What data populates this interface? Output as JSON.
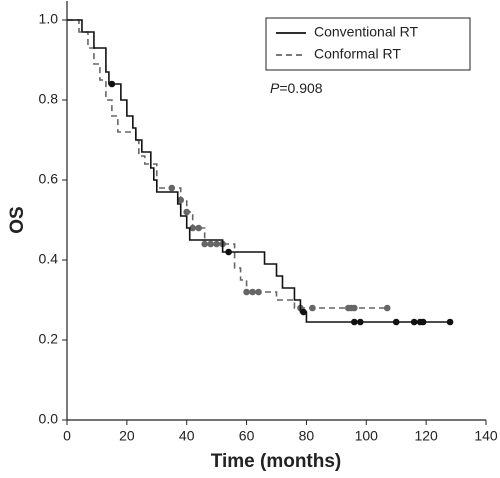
{
  "chart_data": {
    "type": "line",
    "step": "post",
    "x_label": "Time (months)",
    "y_label": "OS",
    "annotation": [
      "P",
      "=0.908"
    ],
    "xlim": [
      0,
      140
    ],
    "xticks": [
      0,
      20,
      40,
      60,
      80,
      100,
      120,
      140
    ],
    "ylim": [
      0,
      1.05
    ],
    "yticks": [
      {
        "value": 0,
        "label": "0.0"
      },
      {
        "value": 0.2,
        "label": "0.2"
      },
      {
        "value": 0.4,
        "label": "0.4"
      },
      {
        "value": 0.6,
        "label": "0.6"
      },
      {
        "value": 0.8,
        "label": "0.8"
      },
      {
        "value": 1.0,
        "label": "1.0"
      }
    ],
    "series": [
      {
        "name": "Conventional RT",
        "color": "#111111",
        "dash": false,
        "x": [
          0,
          5,
          9,
          13,
          14,
          18,
          20,
          22,
          23,
          25,
          28,
          29,
          30,
          37,
          38,
          40,
          41,
          42,
          52,
          66,
          70,
          72,
          76,
          78,
          80,
          128
        ],
        "values": [
          1.0,
          0.97,
          0.93,
          0.87,
          0.84,
          0.8,
          0.76,
          0.73,
          0.7,
          0.67,
          0.63,
          0.6,
          0.57,
          0.54,
          0.51,
          0.48,
          0.45,
          0.45,
          0.42,
          0.39,
          0.36,
          0.33,
          0.3,
          0.27,
          0.245,
          0.245
        ],
        "censor_x": [
          15,
          54,
          79,
          96,
          98,
          110,
          116,
          118,
          119,
          128
        ],
        "censor_y": [
          0.84,
          0.42,
          0.27,
          0.245,
          0.245,
          0.245,
          0.245,
          0.245,
          0.245,
          0.245
        ]
      },
      {
        "name": "Conformal RT",
        "color": "#666666",
        "dash": true,
        "x": [
          0,
          4,
          7,
          9,
          11,
          13,
          15,
          17,
          23,
          24,
          26,
          30,
          38,
          40,
          42,
          46,
          56,
          58,
          60,
          70,
          76,
          107
        ],
        "values": [
          1.0,
          0.97,
          0.93,
          0.89,
          0.85,
          0.8,
          0.76,
          0.72,
          0.7,
          0.66,
          0.64,
          0.58,
          0.55,
          0.52,
          0.48,
          0.44,
          0.38,
          0.35,
          0.32,
          0.3,
          0.28,
          0.28
        ],
        "censor_x": [
          35,
          38,
          40,
          42,
          44,
          46,
          48,
          50,
          52,
          60,
          62,
          64,
          78,
          82,
          94,
          95,
          96,
          107
        ],
        "censor_y": [
          0.58,
          0.55,
          0.52,
          0.48,
          0.48,
          0.44,
          0.44,
          0.44,
          0.44,
          0.32,
          0.32,
          0.32,
          0.28,
          0.28,
          0.28,
          0.28,
          0.28,
          0.28
        ]
      }
    ]
  }
}
